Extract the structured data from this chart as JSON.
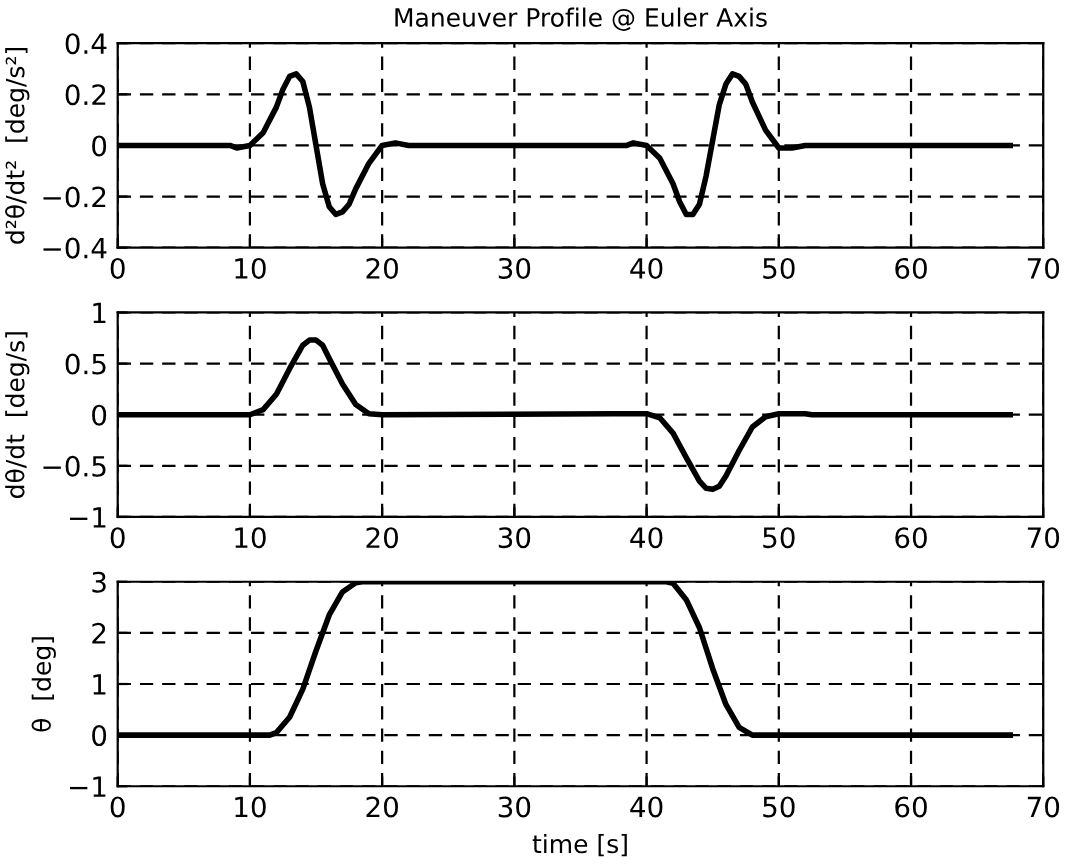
{
  "chart_data": [
    {
      "type": "line",
      "title": "Maneuver Profile @ Euler Axis",
      "ylabel": "d²θ/dt²  [deg/s²]",
      "xlim": [
        0,
        70
      ],
      "xticks": [
        0,
        10,
        20,
        30,
        40,
        50,
        60,
        70
      ],
      "ylim": [
        -0.4,
        0.4
      ],
      "yticks": [
        -0.4,
        -0.2,
        0,
        0.2,
        0.4
      ],
      "grid": true,
      "line_style": "solid",
      "marker": "none",
      "series": [
        {
          "color": "#000000",
          "x": [
            0,
            8.5,
            9,
            10,
            11,
            12,
            12.5,
            13,
            13.5,
            14,
            14.5,
            15,
            15.5,
            16,
            16.5,
            17,
            17.5,
            18,
            19,
            20,
            21,
            22,
            38.5,
            39,
            40,
            41,
            42,
            42.5,
            43,
            43.5,
            44,
            44.5,
            45,
            45.5,
            46,
            46.5,
            47,
            47.5,
            48,
            49,
            50,
            51,
            52,
            67.5
          ],
          "values": [
            0,
            0,
            -0.01,
            0,
            0.05,
            0.15,
            0.22,
            0.27,
            0.28,
            0.25,
            0.15,
            0,
            -0.15,
            -0.24,
            -0.27,
            -0.26,
            -0.23,
            -0.17,
            -0.07,
            0,
            0.01,
            0,
            0,
            0.01,
            0,
            -0.05,
            -0.15,
            -0.22,
            -0.27,
            -0.27,
            -0.23,
            -0.12,
            0.02,
            0.16,
            0.24,
            0.28,
            0.27,
            0.24,
            0.17,
            0.06,
            -0.01,
            -0.01,
            0,
            0
          ]
        }
      ]
    },
    {
      "type": "line",
      "ylabel": "dθ/dt  [deg/s]",
      "xlim": [
        0,
        70
      ],
      "xticks": [
        0,
        10,
        20,
        30,
        40,
        50,
        60,
        70
      ],
      "ylim": [
        -1,
        1
      ],
      "yticks": [
        -1,
        -0.5,
        0,
        0.5,
        1
      ],
      "grid": true,
      "line_style": "solid",
      "marker": "none",
      "series": [
        {
          "color": "#000000",
          "x": [
            0,
            10,
            11,
            12,
            13,
            14,
            14.5,
            15,
            15.5,
            16,
            17,
            18,
            19,
            20,
            37.5,
            40,
            41,
            42,
            43,
            44,
            44.5,
            45,
            45.5,
            46,
            47,
            48,
            49,
            50,
            52,
            52.5,
            67.5
          ],
          "values": [
            0,
            0,
            0.05,
            0.2,
            0.45,
            0.68,
            0.73,
            0.73,
            0.68,
            0.55,
            0.3,
            0.1,
            0.01,
            0,
            0.01,
            0.01,
            -0.03,
            -0.18,
            -0.42,
            -0.65,
            -0.72,
            -0.73,
            -0.7,
            -0.6,
            -0.35,
            -0.12,
            -0.02,
            0.01,
            0.01,
            0,
            0
          ]
        }
      ]
    },
    {
      "type": "line",
      "ylabel": "θ  [deg]",
      "xlabel": "time [s]",
      "xlim": [
        0,
        70
      ],
      "xticks": [
        0,
        10,
        20,
        30,
        40,
        50,
        60,
        70
      ],
      "ylim": [
        -1,
        3
      ],
      "yticks": [
        -1,
        0,
        1,
        2,
        3
      ],
      "grid": true,
      "line_style": "solid",
      "marker": "none",
      "series": [
        {
          "color": "#000000",
          "x": [
            0,
            11.5,
            12,
            13,
            14,
            15,
            16,
            17,
            18,
            18.5,
            41.5,
            42,
            43,
            44,
            45,
            46,
            47,
            48,
            67.5
          ],
          "values": [
            0,
            0,
            0.05,
            0.35,
            0.9,
            1.65,
            2.35,
            2.8,
            2.98,
            3,
            3,
            2.97,
            2.65,
            2.1,
            1.3,
            0.6,
            0.15,
            0,
            0
          ]
        }
      ]
    }
  ]
}
